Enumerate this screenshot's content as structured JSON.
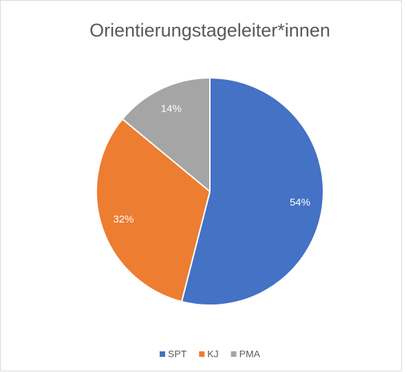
{
  "chart_data": {
    "type": "pie",
    "title": "Orientierungstageleiter*innen",
    "categories": [
      "SPT",
      "KJ",
      "PMA"
    ],
    "values": [
      54,
      32,
      14
    ],
    "value_labels": [
      "54%",
      "32%",
      "14%"
    ],
    "colors": [
      "#4472c4",
      "#ed7d31",
      "#a5a5a5"
    ],
    "legend": "bottom"
  }
}
